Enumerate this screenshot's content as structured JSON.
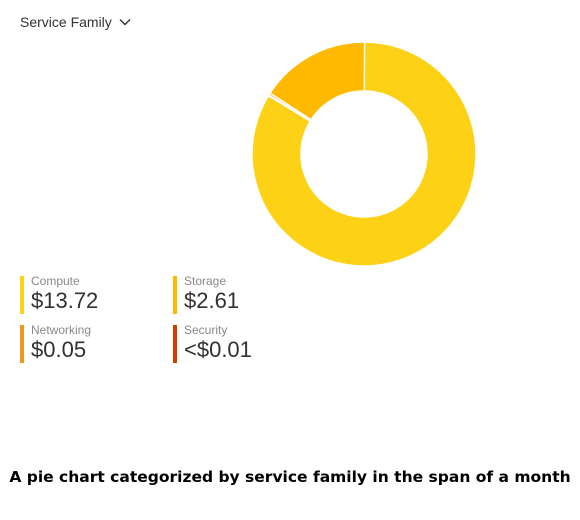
{
  "header": {
    "dropdown_label": "Service Family",
    "dropdown_icon": "chevron-down-icon"
  },
  "chart_data": {
    "type": "pie",
    "subtype": "donut",
    "categories": [
      "Compute",
      "Storage",
      "Networking",
      "Security"
    ],
    "values": [
      13.72,
      2.61,
      0.05,
      0.005
    ],
    "value_labels": [
      "$13.72",
      "$2.61",
      "$0.05",
      "<$0.01"
    ],
    "colors": [
      "#fcd116",
      "#ffb900",
      "#f7941d",
      "#d83b01"
    ],
    "legend_placement": "bottom-left",
    "title": ""
  },
  "caption": "A pie chart categorized by service family in the span of a month"
}
